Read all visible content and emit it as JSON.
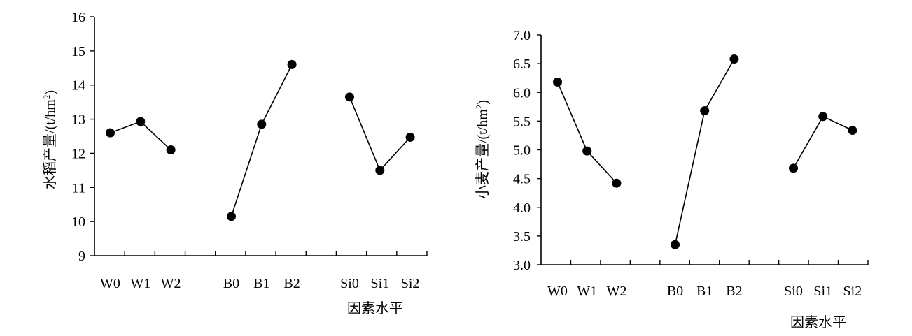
{
  "chart_data": [
    {
      "type": "line",
      "ylabel": "水稻产量/(t/hm²)",
      "ylabel_main": "水稻产量/(t/hm",
      "ylabel_sup": "2",
      "ylabel_end": ")",
      "xlabel": "因素水平",
      "ylim": [
        9,
        16
      ],
      "yticks": [
        "9",
        "10",
        "11",
        "12",
        "13",
        "14",
        "15",
        "16"
      ],
      "groups": [
        {
          "categories": [
            "W0",
            "W1",
            "W2"
          ],
          "values": [
            12.6,
            12.93,
            12.1
          ]
        },
        {
          "categories": [
            "B0",
            "B1",
            "B2"
          ],
          "values": [
            10.15,
            12.85,
            14.6
          ]
        },
        {
          "categories": [
            "Si0",
            "Si1",
            "Si2"
          ],
          "values": [
            13.65,
            11.5,
            12.47
          ]
        }
      ]
    },
    {
      "type": "line",
      "ylabel": "小麦产量/(t/hm²)",
      "ylabel_main": "小麦产量/(t/hm",
      "ylabel_sup": "2",
      "ylabel_end": ")",
      "xlabel": "因素水平",
      "ylim": [
        3.0,
        7.0
      ],
      "yticks": [
        "3.0",
        "3.5",
        "4.0",
        "4.5",
        "5.0",
        "5.5",
        "6.0",
        "6.5",
        "7.0"
      ],
      "groups": [
        {
          "categories": [
            "W0",
            "W1",
            "W2"
          ],
          "values": [
            6.18,
            4.98,
            4.42
          ]
        },
        {
          "categories": [
            "B0",
            "B1",
            "B2"
          ],
          "values": [
            3.35,
            5.68,
            6.58
          ]
        },
        {
          "categories": [
            "Si0",
            "Si1",
            "Si2"
          ],
          "values": [
            4.68,
            5.58,
            5.34
          ]
        }
      ]
    }
  ]
}
